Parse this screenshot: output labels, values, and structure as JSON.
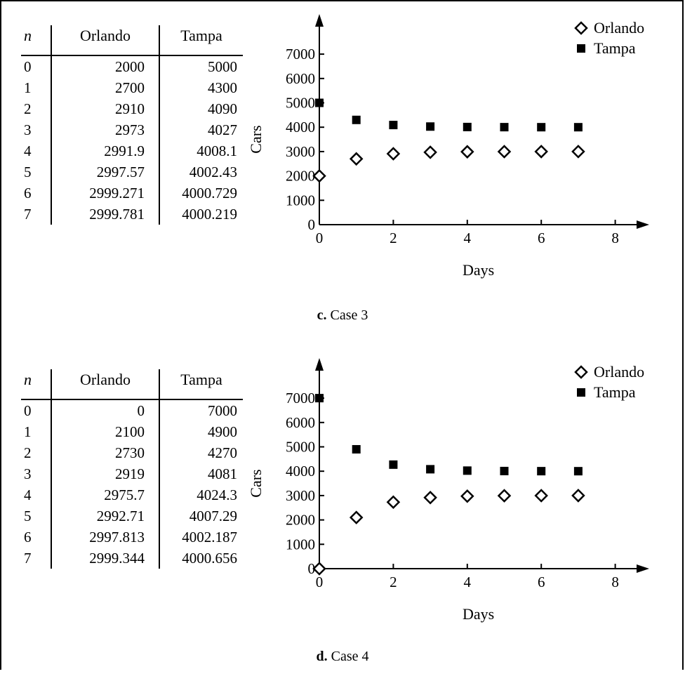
{
  "chart_data": [
    {
      "type": "scatter",
      "caption": {
        "letter": "c.",
        "text": "Case 3"
      },
      "table": {
        "headers": [
          "n",
          "Orlando",
          "Tampa"
        ],
        "rows": [
          [
            "0",
            "2000",
            "5000"
          ],
          [
            "1",
            "2700",
            "4300"
          ],
          [
            "2",
            "2910",
            "4090"
          ],
          [
            "3",
            "2973",
            "4027"
          ],
          [
            "4",
            "2991.9",
            "4008.1"
          ],
          [
            "5",
            "2997.57",
            "4002.43"
          ],
          [
            "6",
            "2999.271",
            "4000.729"
          ],
          [
            "7",
            "2999.781",
            "4000.219"
          ]
        ]
      },
      "xlabel": "Days",
      "ylabel": "Cars",
      "xlim": [
        0,
        8
      ],
      "ylim": [
        0,
        7000
      ],
      "xticks": [
        0,
        2,
        4,
        6,
        8
      ],
      "yticks": [
        0,
        1000,
        2000,
        3000,
        4000,
        5000,
        6000,
        7000
      ],
      "legend_position": "top-right",
      "series": [
        {
          "name": "Orlando",
          "marker": "hollow-diamond",
          "x": [
            0,
            1,
            2,
            3,
            4,
            5,
            6,
            7
          ],
          "values": [
            2000,
            2700,
            2910,
            2973,
            2991.9,
            2997.57,
            2999.271,
            2999.781
          ]
        },
        {
          "name": "Tampa",
          "marker": "filled-square",
          "x": [
            0,
            1,
            2,
            3,
            4,
            5,
            6,
            7
          ],
          "values": [
            5000,
            4300,
            4090,
            4027,
            4008.1,
            4002.43,
            4000.729,
            4000.219
          ]
        }
      ]
    },
    {
      "type": "scatter",
      "caption": {
        "letter": "d.",
        "text": "Case 4"
      },
      "table": {
        "headers": [
          "n",
          "Orlando",
          "Tampa"
        ],
        "rows": [
          [
            "0",
            "0",
            "7000"
          ],
          [
            "1",
            "2100",
            "4900"
          ],
          [
            "2",
            "2730",
            "4270"
          ],
          [
            "3",
            "2919",
            "4081"
          ],
          [
            "4",
            "2975.7",
            "4024.3"
          ],
          [
            "5",
            "2992.71",
            "4007.29"
          ],
          [
            "6",
            "2997.813",
            "4002.187"
          ],
          [
            "7",
            "2999.344",
            "4000.656"
          ]
        ]
      },
      "xlabel": "Days",
      "ylabel": "Cars",
      "xlim": [
        0,
        8
      ],
      "ylim": [
        0,
        7000
      ],
      "xticks": [
        0,
        2,
        4,
        6,
        8
      ],
      "yticks": [
        0,
        1000,
        2000,
        3000,
        4000,
        5000,
        6000,
        7000
      ],
      "legend_position": "top-right",
      "series": [
        {
          "name": "Orlando",
          "marker": "hollow-diamond",
          "x": [
            0,
            1,
            2,
            3,
            4,
            5,
            6,
            7
          ],
          "values": [
            0,
            2100,
            2730,
            2919,
            2975.7,
            2992.71,
            2997.813,
            2999.344
          ]
        },
        {
          "name": "Tampa",
          "marker": "filled-square",
          "x": [
            0,
            1,
            2,
            3,
            4,
            5,
            6,
            7
          ],
          "values": [
            7000,
            4900,
            4270,
            4081,
            4024.3,
            4007.29,
            4002.187,
            4000.656
          ]
        }
      ]
    }
  ]
}
